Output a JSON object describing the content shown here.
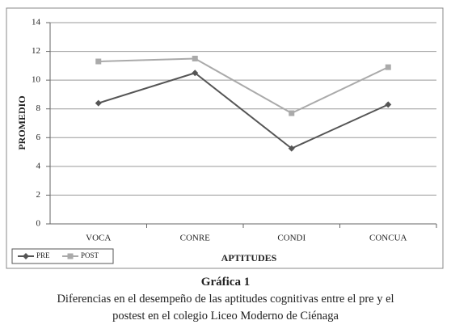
{
  "chart_data": {
    "type": "line",
    "categories": [
      "VOCA",
      "CONRE",
      "CONDI",
      "CONCUA"
    ],
    "series": [
      {
        "name": "PRE",
        "color": "#555555",
        "marker": "diamond",
        "values": [
          8.4,
          10.5,
          5.25,
          8.3
        ]
      },
      {
        "name": "POST",
        "color": "#aaaaaa",
        "marker": "square",
        "values": [
          11.3,
          11.5,
          7.7,
          10.9
        ]
      }
    ],
    "xlabel": "APTITUDES",
    "ylabel": "PROMEDIO",
    "ylim": [
      0,
      14
    ],
    "yticks": [
      0,
      2,
      4,
      6,
      8,
      10,
      12,
      14
    ],
    "grid": true,
    "legend": "bottom-left",
    "caption_title": "Gráfica 1",
    "caption": "Diferencias en el desempeño de las aptitudes cognitivas entre el pre y el postest en el colegio Liceo Moderno de Ciénaga"
  }
}
